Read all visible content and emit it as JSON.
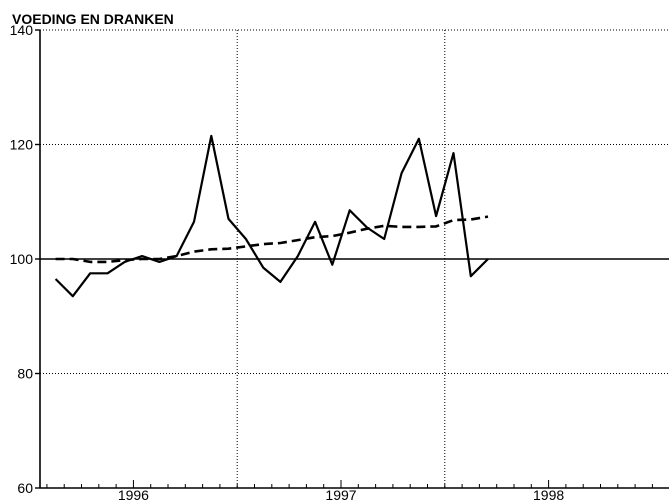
{
  "chart_data": {
    "type": "line",
    "title": "VOEDING EN DRANKEN",
    "xlabel": "",
    "ylabel": "",
    "ylim": [
      60,
      140
    ],
    "yticks": [
      60,
      80,
      100,
      120,
      140
    ],
    "xlim": [
      1995.55,
      1998.58
    ],
    "year_labels": [
      {
        "label": "1996",
        "x": 1996.0
      },
      {
        "label": "1997",
        "x": 1997.0
      },
      {
        "label": "1998",
        "x": 1998.0
      }
    ],
    "vertical_grid_x": [
      1996.5,
      1997.5
    ],
    "reference_line": 100,
    "grid": true,
    "series": [
      {
        "style": "solid",
        "x": [
          1995.625,
          1995.708,
          1995.792,
          1995.875,
          1995.958,
          1996.042,
          1996.125,
          1996.208,
          1996.292,
          1996.375,
          1996.458,
          1996.542,
          1996.625,
          1996.708,
          1996.792,
          1996.875,
          1996.958,
          1997.042,
          1997.125,
          1997.208,
          1997.292,
          1997.375,
          1997.458,
          1997.542,
          1997.625,
          1997.708
        ],
        "values": [
          96.5,
          93.5,
          97.5,
          97.5,
          99.5,
          100.5,
          99.5,
          100.5,
          106.5,
          121.5,
          107,
          103.5,
          98.5,
          96,
          100.5,
          106.5,
          99,
          108.5,
          105.5,
          103.5,
          115,
          121,
          107.5,
          118.5,
          97,
          100
        ]
      },
      {
        "style": "dashed",
        "x": [
          1995.625,
          1995.708,
          1995.792,
          1995.875,
          1995.958,
          1996.042,
          1996.125,
          1996.208,
          1996.292,
          1996.375,
          1996.458,
          1996.542,
          1996.625,
          1996.708,
          1996.792,
          1996.875,
          1996.958,
          1997.042,
          1997.125,
          1997.208,
          1997.292,
          1997.375,
          1997.458,
          1997.542,
          1997.625,
          1997.708
        ],
        "values": [
          100,
          100,
          99.5,
          99.5,
          99.8,
          100,
          100,
          100.5,
          101.3,
          101.7,
          101.8,
          102.2,
          102.6,
          102.8,
          103.3,
          103.8,
          104,
          104.6,
          105.3,
          105.8,
          105.6,
          105.6,
          105.7,
          106.8,
          106.9,
          107.4
        ]
      }
    ]
  }
}
